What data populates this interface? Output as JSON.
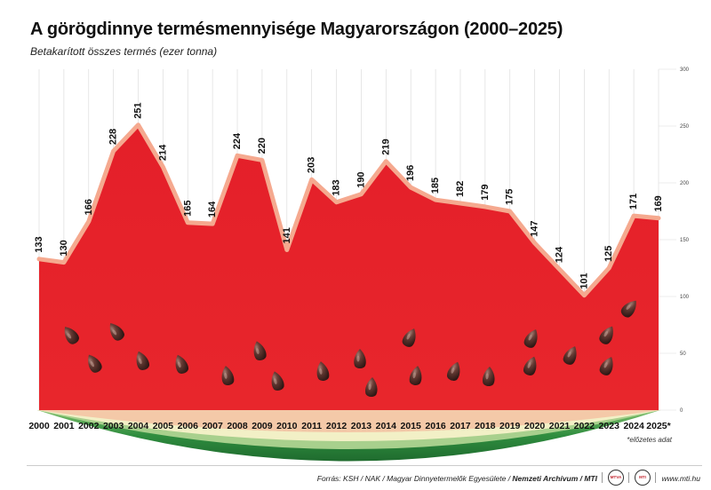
{
  "title": "A görögdinnye termésmennyisége Magyarországon (2000–2025)",
  "subtitle": "Betakarított összes termés (ezer tonna)",
  "note": "*előzetes adat",
  "footer": {
    "source_prefix": "Forrás: KSH / NAK / Magyar Dinnyetermelők Egyesülete / ",
    "source_bold": "Nemzeti Archívum / MTI",
    "logos": [
      "MTVA",
      "MTI"
    ],
    "site": "www.mti.hu"
  },
  "colors": {
    "flesh": "#e8202a",
    "rind_line": "#f5a98f",
    "rind_pale": "#f2f0c6",
    "rind_green": "#2d8a3e",
    "rind_light_green": "#a8d08d",
    "seed": "#4a2a26",
    "grid": "#dddddd"
  },
  "chart_data": {
    "type": "area",
    "title": "A görögdinnye termésmennyisége Magyarországon (2000–2025)",
    "subtitle": "Betakarított összes termés (ezer tonna)",
    "xlabel": "",
    "ylabel": "",
    "categories": [
      "2000",
      "2001",
      "2002",
      "2003",
      "2004",
      "2005",
      "2006",
      "2007",
      "2008",
      "2009",
      "2010",
      "2011",
      "2012",
      "2013",
      "2014",
      "2015",
      "2016",
      "2017",
      "2018",
      "2019",
      "2020",
      "2021",
      "2022",
      "2023",
      "2024",
      "2025*"
    ],
    "values": [
      133,
      130,
      166,
      228,
      251,
      214,
      165,
      164,
      224,
      220,
      141,
      203,
      183,
      190,
      219,
      196,
      185,
      182,
      179,
      175,
      147,
      124,
      101,
      125,
      171,
      169
    ],
    "value_labels": [
      "133",
      "130",
      "166",
      "228",
      "251",
      "214",
      "165",
      "164",
      "224",
      "220",
      "141",
      "203",
      "183",
      "190",
      "219",
      "196",
      "185",
      "182",
      "179",
      "175",
      "147",
      "124",
      "101",
      "125",
      "171",
      "169"
    ],
    "ylim": [
      0,
      300
    ],
    "y_ticks": [
      0,
      50,
      100,
      150,
      200,
      250,
      300
    ],
    "y_tick_labels": [
      "0",
      "50",
      "100",
      "150",
      "200",
      "250",
      "300"
    ],
    "y_axis_side": "right",
    "grid": true,
    "legend": "none"
  }
}
